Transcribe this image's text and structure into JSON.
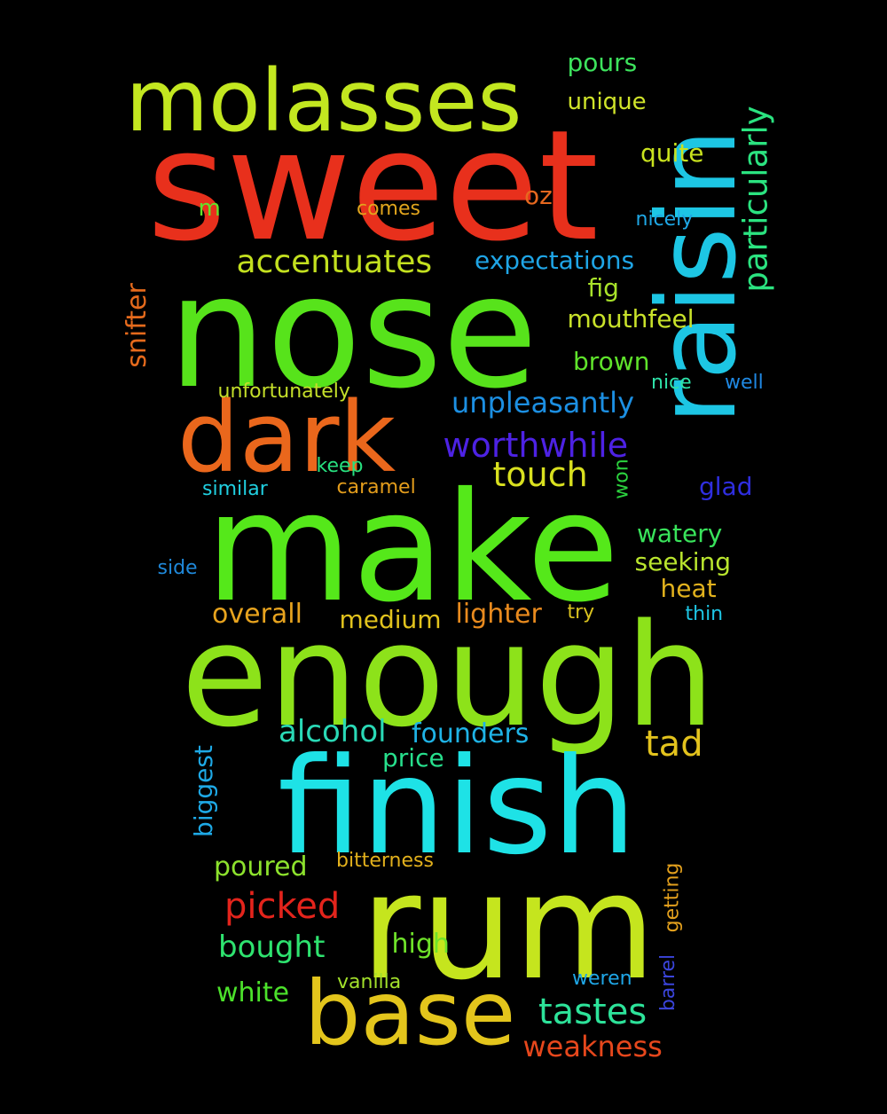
{
  "words": [
    {
      "text": "sweet",
      "color": "#e8301c",
      "orientation": "horizontal"
    },
    {
      "text": "nose",
      "color": "#57e31b",
      "orientation": "horizontal"
    },
    {
      "text": "make",
      "color": "#55e81a",
      "orientation": "horizontal"
    },
    {
      "text": "enough",
      "color": "#8de21a",
      "orientation": "horizontal"
    },
    {
      "text": "rum",
      "color": "#c5e51e",
      "orientation": "horizontal"
    },
    {
      "text": "finish",
      "color": "#1ee2e6",
      "orientation": "horizontal"
    },
    {
      "text": "raisin",
      "color": "#1dc6e4",
      "orientation": "vertical"
    },
    {
      "text": "molasses",
      "color": "#c3e720",
      "orientation": "horizontal"
    },
    {
      "text": "dark",
      "color": "#ea671c",
      "orientation": "horizontal"
    },
    {
      "text": "base",
      "color": "#e3c51c",
      "orientation": "horizontal"
    },
    {
      "text": "worthwhile",
      "color": "#4d22e4",
      "orientation": "horizontal"
    },
    {
      "text": "particularly",
      "color": "#2be380",
      "orientation": "vertical"
    },
    {
      "text": "accentuates",
      "color": "#c3e01f",
      "orientation": "horizontal"
    },
    {
      "text": "unpleasantly",
      "color": "#1c8fe2",
      "orientation": "horizontal"
    },
    {
      "text": "touch",
      "color": "#d9e01f",
      "orientation": "horizontal"
    },
    {
      "text": "expectations",
      "color": "#1fa5e6",
      "orientation": "horizontal"
    },
    {
      "text": "tastes",
      "color": "#2de39a",
      "orientation": "horizontal"
    },
    {
      "text": "tad",
      "color": "#e3c31d",
      "orientation": "horizontal"
    },
    {
      "text": "picked",
      "color": "#e3241c",
      "orientation": "horizontal"
    },
    {
      "text": "alcohol",
      "color": "#2ad9b6",
      "orientation": "horizontal"
    },
    {
      "text": "founders",
      "color": "#1fb3e6",
      "orientation": "horizontal"
    },
    {
      "text": "bought",
      "color": "#2ee36f",
      "orientation": "horizontal"
    },
    {
      "text": "weakness",
      "color": "#e6471c",
      "orientation": "horizontal"
    },
    {
      "text": "lighter",
      "color": "#e88a1e",
      "orientation": "horizontal"
    },
    {
      "text": "overall",
      "color": "#e7a31e",
      "orientation": "horizontal"
    },
    {
      "text": "medium",
      "color": "#e2c31d",
      "orientation": "horizontal"
    },
    {
      "text": "pours",
      "color": "#3de35d",
      "orientation": "horizontal"
    },
    {
      "text": "unique",
      "color": "#d0e42a",
      "orientation": "horizontal"
    },
    {
      "text": "quite",
      "color": "#c9e21e",
      "orientation": "horizontal"
    },
    {
      "text": "mouthfeel",
      "color": "#c9e22a",
      "orientation": "horizontal"
    },
    {
      "text": "fig",
      "color": "#a8e22a",
      "orientation": "horizontal"
    },
    {
      "text": "brown",
      "color": "#5fe32b",
      "orientation": "horizontal"
    },
    {
      "text": "watery",
      "color": "#39e35b",
      "orientation": "horizontal"
    },
    {
      "text": "seeking",
      "color": "#b9e52e",
      "orientation": "horizontal"
    },
    {
      "text": "heat",
      "color": "#e2b21d",
      "orientation": "horizontal"
    },
    {
      "text": "price",
      "color": "#27e08d",
      "orientation": "horizontal"
    },
    {
      "text": "poured",
      "color": "#8de22d",
      "orientation": "horizontal"
    },
    {
      "text": "white",
      "color": "#4ce22b",
      "orientation": "horizontal"
    },
    {
      "text": "high",
      "color": "#6fe22a",
      "orientation": "horizontal"
    },
    {
      "text": "snifter",
      "color": "#e56a1c",
      "orientation": "vertical"
    },
    {
      "text": "biggest",
      "color": "#1ea9e6",
      "orientation": "vertical"
    },
    {
      "text": "glad",
      "color": "#2f2ee0",
      "orientation": "horizontal"
    },
    {
      "text": "oz",
      "color": "#e6681f",
      "orientation": "horizontal"
    },
    {
      "text": "m",
      "color": "#63e22a",
      "orientation": "horizontal"
    },
    {
      "text": "comes",
      "color": "#e2a51d",
      "orientation": "horizontal"
    },
    {
      "text": "nicely",
      "color": "#1fa8e6",
      "orientation": "horizontal"
    },
    {
      "text": "unfortunately",
      "color": "#c5df2a",
      "orientation": "horizontal"
    },
    {
      "text": "nice",
      "color": "#2ee2a8",
      "orientation": "horizontal"
    },
    {
      "text": "well",
      "color": "#1f88e2",
      "orientation": "horizontal"
    },
    {
      "text": "keep",
      "color": "#27e07f",
      "orientation": "horizontal"
    },
    {
      "text": "similar",
      "color": "#20cfe0",
      "orientation": "horizontal"
    },
    {
      "text": "caramel",
      "color": "#e39d1c",
      "orientation": "horizontal"
    },
    {
      "text": "won",
      "color": "#2bd23e",
      "orientation": "vertical"
    },
    {
      "text": "side",
      "color": "#1f88d9",
      "orientation": "horizontal"
    },
    {
      "text": "try",
      "color": "#d9c21f",
      "orientation": "horizontal"
    },
    {
      "text": "thin",
      "color": "#1ec6e4",
      "orientation": "horizontal"
    },
    {
      "text": "bitterness",
      "color": "#e2b01c",
      "orientation": "horizontal"
    },
    {
      "text": "getting",
      "color": "#e3a01d",
      "orientation": "vertical"
    },
    {
      "text": "barrel",
      "color": "#3b45dc",
      "orientation": "vertical"
    },
    {
      "text": "vanilla",
      "color": "#a2e02b",
      "orientation": "horizontal"
    },
    {
      "text": "weren",
      "color": "#1fa6e6",
      "orientation": "horizontal"
    }
  ]
}
